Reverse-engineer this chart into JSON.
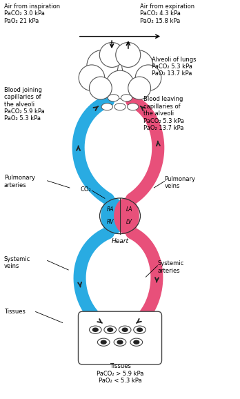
{
  "fig_width": 3.48,
  "fig_height": 5.78,
  "dpi": 100,
  "bg_color": "#ffffff",
  "blue_color": "#29ABE2",
  "red_color": "#E8507A",
  "text_color": "#000000",
  "outline_color": "#333333",
  "labels": {
    "air_inspiration": "Air from inspiration\nPaCO₂ 3.0 kPa\nPaO₂ 21 kPa",
    "air_expiration": "Air from expiration\nPaCO₂ 4.3 kPa\nPaO₂ 15.8 kPa",
    "alveoli": "Alveoli of lungs\nPaCO₂ 5.3 kPa\nPaO₂ 13.7 kPa",
    "blood_joining": "Blood joining\ncapillaries of\nthe alveoli\nPaCO₂ 5.9 kPa\nPaO₂ 5.3 kPa",
    "blood_leaving": "Blood leaving\ncapillaries of\nthe alveoli\nPaCO₂ 5.3 kPa\nPaO₂ 13.7 kPa",
    "pulm_arteries": "Pulmonary\narteries",
    "pulm_veins": "Pulmonary\nveins",
    "co2": "CO₂",
    "heart": "Heart",
    "systemic_veins": "Systemic\nveins",
    "systemic_arteries": "Systemic\narteries",
    "tissues_left": "Tissues",
    "tissues_bottom": "Tissues\nPaCO₂ > 5.9 kPa\nPaO₂ < 5.3 kPa",
    "RA": "RA",
    "LA": "LA",
    "RV": "RV",
    "LV": "LV"
  }
}
